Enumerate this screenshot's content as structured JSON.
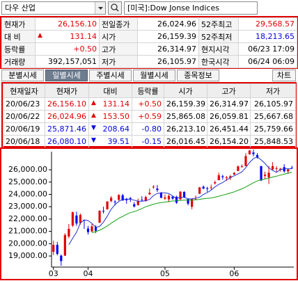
{
  "toolbar": {
    "symbol": "다우 산업",
    "market": "[미국]:Dow Jonse Indices"
  },
  "quote": {
    "rows": [
      [
        "현재가",
        {
          "text": "26,156.10",
          "color": "#e00000"
        },
        "전일종가",
        "26,024.96",
        "52주최고",
        {
          "text": "29,568.57",
          "color": "#e00000"
        }
      ],
      [
        "대 비",
        {
          "arrow": "▲",
          "text": "131.14",
          "color": "#e00000"
        },
        "시가",
        "26,159.39",
        "52주최저",
        {
          "text": "18,213.65",
          "color": "#0000e0"
        }
      ],
      [
        "등락률",
        {
          "text": "+0.50",
          "color": "#e00000"
        },
        "고가",
        "26,314.97",
        "현지시각",
        "06/23 17:09"
      ],
      [
        "거래량",
        "392,157,051",
        "저가",
        "26,105.97",
        "한국시각",
        "06/24 06:09"
      ]
    ]
  },
  "tabs": [
    "분별시세",
    "일별시세",
    "주별시세",
    "월별시세",
    "종목정보"
  ],
  "active_tab": 1,
  "chart_button": "차트",
  "daily": {
    "columns": [
      "현재일자",
      "현재가",
      "대비",
      "등락률",
      "시가",
      "고가",
      "저가"
    ],
    "rows": [
      [
        "20/06/23",
        {
          "text": "26,156.10",
          "color": "#e00000"
        },
        {
          "arrow": "▲",
          "text": "131.14",
          "color": "#e00000"
        },
        {
          "text": "+0.50",
          "color": "#e00000"
        },
        "26,159.39",
        "26,314.97",
        "26,105.97"
      ],
      [
        "20/06/22",
        {
          "text": "26,024.96",
          "color": "#e00000"
        },
        {
          "arrow": "▲",
          "text": "153.50",
          "color": "#e00000"
        },
        {
          "text": "+0.59",
          "color": "#e00000"
        },
        "25,865.08",
        "26,059.81",
        "25,667.68"
      ],
      [
        "20/06/19",
        {
          "text": "25,871.46",
          "color": "#0000e0"
        },
        {
          "arrow": "▼",
          "text": "208.64",
          "color": "#0000e0"
        },
        {
          "text": "-0.80",
          "color": "#0000e0"
        },
        "26,213.10",
        "26,451.44",
        "25,759.66"
      ],
      [
        "20/06/18",
        {
          "text": "26,080.10",
          "color": "#0000e0"
        },
        {
          "arrow": "▼",
          "text": "39.51",
          "color": "#0000e0"
        },
        {
          "text": "-0.15",
          "color": "#0000e0"
        },
        "26,016.45",
        "26,154.20",
        "25,848.53"
      ]
    ]
  },
  "chart_data": {
    "type": "candlestick",
    "categories": [
      "03",
      null,
      null,
      null,
      null,
      null,
      null,
      null,
      null,
      "04",
      null,
      null,
      null,
      null,
      null,
      null,
      null,
      null,
      null,
      null,
      null,
      null,
      null,
      null,
      null,
      null,
      null,
      null,
      null,
      "05",
      null,
      null,
      null,
      null,
      null,
      null,
      null,
      null,
      null,
      null,
      null,
      null,
      null,
      null,
      null,
      null,
      null,
      "06",
      null,
      null,
      null,
      null,
      null,
      null,
      null,
      null,
      null,
      null,
      null,
      null,
      null,
      null,
      null
    ],
    "open": [
      19340,
      19900,
      19030,
      19030,
      20580,
      21470,
      22280,
      21680,
      21930,
      21230,
      21000,
      21330,
      21700,
      22660,
      22800,
      23460,
      23420,
      23560,
      23930,
      23580,
      23700,
      23200,
      23140,
      23560,
      23450,
      24000,
      24620,
      24470,
      24100,
      23660,
      23600,
      23820,
      23800,
      23590,
      24200,
      23630,
      23000,
      23620,
      24050,
      24620,
      24500,
      24570,
      24900,
      25150,
      25470,
      25350,
      25340,
      25600,
      25900,
      26200,
      26300,
      27250,
      27400,
      27190,
      26300,
      25500,
      25380,
      26020,
      26100,
      26016.45,
      26213.1,
      25865.08,
      26159.39
    ],
    "high": [
      20250,
      20150,
      19120,
      20850,
      21600,
      22600,
      22600,
      22450,
      21950,
      21450,
      21600,
      21500,
      22700,
      23000,
      23440,
      23860,
      23520,
      24010,
      24040,
      23720,
      23790,
      23370,
      23660,
      23850,
      23900,
      24480,
      24750,
      24760,
      24200,
      24000,
      24000,
      23850,
      23890,
      24260,
      24260,
      23640,
      23660,
      23920,
      24600,
      24720,
      24620,
      24800,
      25120,
      25760,
      25590,
      25500,
      25580,
      25820,
      26350,
      26430,
      27340,
      27580,
      27630,
      27350,
      26300,
      25850,
      26300,
      26620,
      26300,
      26154.2,
      26451.44,
      26059.81,
      26314.97
    ],
    "low": [
      19080,
      19050,
      18210,
      19000,
      20450,
      21350,
      21450,
      21550,
      21200,
      20740,
      20920,
      20860,
      21690,
      22450,
      22750,
      23360,
      23100,
      23480,
      23500,
      23240,
      23380,
      22940,
      23080,
      23500,
      23430,
      23950,
      24450,
      24200,
      23700,
      23550,
      23360,
      23560,
      23230,
      23570,
      23710,
      23110,
      22800,
      23560,
      24040,
      24430,
      24200,
      24380,
      24800,
      25150,
      25200,
      25100,
      25170,
      25600,
      25900,
      26200,
      26300,
      27240,
      27080,
      26900,
      25080,
      25220,
      24840,
      25990,
      25830,
      25848.53,
      25759.66,
      25667.68,
      26105.97
    ],
    "close": [
      19900,
      19170,
      18590,
      20700,
      21200,
      22550,
      21640,
      22330,
      21920,
      20940,
      21410,
      21050,
      22680,
      22650,
      23430,
      23720,
      23390,
      23950,
      23500,
      23540,
      23650,
      23020,
      23480,
      23520,
      23780,
      24130,
      24630,
      24350,
      23720,
      23750,
      23880,
      23660,
      23330,
      24220,
      23760,
      23250,
      23630,
      23620,
      24570,
      24470,
      24470,
      24570,
      24990,
      25550,
      25400,
      25380,
      25480,
      25740,
      26270,
      26280,
      27110,
      27570,
      27270,
      26990,
      25130,
      25600,
      25760,
      26290,
      26120,
      26080.1,
      25871.46,
      26024.96,
      26156.1
    ],
    "up_color": "#e00000",
    "down_color": "#0000ff",
    "series": [
      {
        "color": "#2030d0",
        "values": [
          null,
          null,
          null,
          null,
          19910,
          20440,
          20930,
          21680,
          21930,
          21870,
          21650,
          21330,
          21400,
          21750,
          22240,
          22790,
          23170,
          23430,
          23600,
          23620,
          23610,
          23530,
          23440,
          23440,
          23490,
          23590,
          23910,
          24080,
          24120,
          24120,
          24070,
          23870,
          23670,
          23770,
          23770,
          23640,
          23640,
          23700,
          23770,
          24000,
          24150,
          24340,
          24610,
          24810,
          24960,
          25180,
          25360,
          25510,
          25660,
          25830,
          26180,
          26590,
          26900,
          27040,
          26810,
          26510,
          26150,
          25950,
          25780,
          26010,
          26080,
          26080,
          26070
        ]
      },
      {
        "color": "#10a010",
        "values": [
          null,
          null,
          null,
          null,
          null,
          null,
          null,
          null,
          null,
          null,
          20900,
          20980,
          21090,
          21250,
          21440,
          21660,
          21860,
          22060,
          22210,
          22380,
          22520,
          22600,
          22720,
          22850,
          23000,
          23100,
          23200,
          23280,
          23330,
          23370,
          23430,
          23460,
          23480,
          23510,
          23530,
          23540,
          23540,
          23560,
          23600,
          23650,
          23680,
          23700,
          23770,
          23850,
          23930,
          24020,
          24110,
          24210,
          24330,
          24450,
          24600,
          24770,
          24940,
          25090,
          25180,
          25250,
          25320,
          25410,
          25480,
          25560,
          25640,
          25720,
          25800
        ]
      }
    ],
    "ylim": [
      18100,
      27470
    ],
    "yticks": [
      {
        "value": 19000,
        "label": "19,000.00"
      },
      {
        "value": 20000,
        "label": "20,000.00"
      },
      {
        "value": 21000,
        "label": "21,000.00"
      },
      {
        "value": 22000,
        "label": "22,000.00"
      },
      {
        "value": 23000,
        "label": "23,000.00"
      },
      {
        "value": 24000,
        "label": "24,000.00"
      },
      {
        "value": 25000,
        "label": "25,000.00"
      },
      {
        "value": 26000,
        "label": "26,000.00"
      }
    ],
    "grid": false
  }
}
